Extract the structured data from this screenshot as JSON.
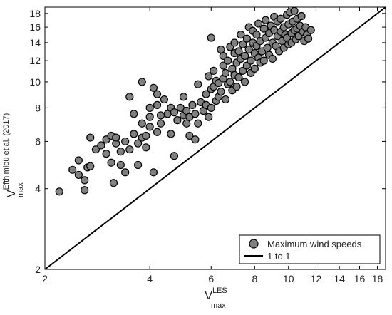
{
  "chart_data": {
    "type": "scatter",
    "x_scale": "log",
    "y_scale": "log",
    "xlim": [
      2,
      19
    ],
    "ylim": [
      2,
      19
    ],
    "x_ticks": [
      2,
      4,
      6,
      8,
      10,
      12,
      14,
      16,
      18
    ],
    "y_ticks": [
      2,
      4,
      6,
      8,
      10,
      12,
      14,
      16,
      18
    ],
    "x_tick_labels": [
      "2",
      "4",
      "6",
      "8",
      "10",
      "12",
      "14",
      "16",
      "18"
    ],
    "y_tick_labels": [
      "2",
      "4",
      "6",
      "8",
      "10",
      "12",
      "14",
      "16",
      "18"
    ],
    "xlabel": {
      "main": "V",
      "sub": "max",
      "sup": "LES"
    },
    "ylabel": {
      "main": "V",
      "sub": "max",
      "sup": "Efthimiou et al. (2017)"
    },
    "grid": false,
    "legend_position": "bottom-right",
    "marker_color": "#808080",
    "marker_edge_color": "#000000",
    "series": [
      {
        "name": "Maximum wind speeds",
        "kind": "scatter",
        "points": [
          [
            2.2,
            3.9
          ],
          [
            2.4,
            4.7
          ],
          [
            2.5,
            4.5
          ],
          [
            2.5,
            5.1
          ],
          [
            2.6,
            4.3
          ],
          [
            2.6,
            3.95
          ],
          [
            2.65,
            4.8
          ],
          [
            2.7,
            4.85
          ],
          [
            2.7,
            6.2
          ],
          [
            2.8,
            5.6
          ],
          [
            2.9,
            5.8
          ],
          [
            3.0,
            6.1
          ],
          [
            3.0,
            5.4
          ],
          [
            3.1,
            6.3
          ],
          [
            3.1,
            5.0
          ],
          [
            3.15,
            4.2
          ],
          [
            3.2,
            5.9
          ],
          [
            3.2,
            6.2
          ],
          [
            3.3,
            5.5
          ],
          [
            3.3,
            4.9
          ],
          [
            3.4,
            6.0
          ],
          [
            3.4,
            4.6
          ],
          [
            3.5,
            8.8
          ],
          [
            3.5,
            5.6
          ],
          [
            3.6,
            6.4
          ],
          [
            3.6,
            7.6
          ],
          [
            3.7,
            5.9
          ],
          [
            3.7,
            4.9
          ],
          [
            3.8,
            6.2
          ],
          [
            3.8,
            10.0
          ],
          [
            3.8,
            7.0
          ],
          [
            3.9,
            6.3
          ],
          [
            3.9,
            5.7
          ],
          [
            4.0,
            8.0
          ],
          [
            4.0,
            6.8
          ],
          [
            4.0,
            7.4
          ],
          [
            4.1,
            9.5
          ],
          [
            4.1,
            4.6
          ],
          [
            4.2,
            9.0
          ],
          [
            4.2,
            8.2
          ],
          [
            4.2,
            6.5
          ],
          [
            4.3,
            7.5
          ],
          [
            4.3,
            7.0
          ],
          [
            4.4,
            8.6
          ],
          [
            4.5,
            7.6
          ],
          [
            4.6,
            8.0
          ],
          [
            4.6,
            6.4
          ],
          [
            4.7,
            7.7
          ],
          [
            4.7,
            5.3
          ],
          [
            4.8,
            7.2
          ],
          [
            4.9,
            8.0
          ],
          [
            5.0,
            7.5
          ],
          [
            5.0,
            8.8
          ],
          [
            5.1,
            7.0
          ],
          [
            5.1,
            7.8
          ],
          [
            5.2,
            6.3
          ],
          [
            5.2,
            7.4
          ],
          [
            5.3,
            8.2
          ],
          [
            5.4,
            7.6
          ],
          [
            5.4,
            6.1
          ],
          [
            5.5,
            9.8
          ],
          [
            5.5,
            7.0
          ],
          [
            5.6,
            8.4
          ],
          [
            5.7,
            7.8
          ],
          [
            5.8,
            9.0
          ],
          [
            5.8,
            8.2
          ],
          [
            5.9,
            10.5
          ],
          [
            5.9,
            7.4
          ],
          [
            6.0,
            8.0
          ],
          [
            6.0,
            9.4
          ],
          [
            6.0,
            14.6
          ],
          [
            6.1,
            9.6
          ],
          [
            6.1,
            11.0
          ],
          [
            6.2,
            8.5
          ],
          [
            6.2,
            10.1
          ],
          [
            6.3,
            8.8
          ],
          [
            6.3,
            9.9
          ],
          [
            6.4,
            13.2
          ],
          [
            6.4,
            9.2
          ],
          [
            6.5,
            10.3
          ],
          [
            6.5,
            11.5
          ],
          [
            6.5,
            12.5
          ],
          [
            6.6,
            8.6
          ],
          [
            6.6,
            10.8
          ],
          [
            6.7,
            9.8
          ],
          [
            6.7,
            12.0
          ],
          [
            6.8,
            13.5
          ],
          [
            6.8,
            10.0
          ],
          [
            6.9,
            11.2
          ],
          [
            6.9,
            9.3
          ],
          [
            7.0,
            12.8
          ],
          [
            7.0,
            10.6
          ],
          [
            7.0,
            14.0
          ],
          [
            7.1,
            11.8
          ],
          [
            7.1,
            9.6
          ],
          [
            7.2,
            13.0
          ],
          [
            7.2,
            10.4
          ],
          [
            7.3,
            12.2
          ],
          [
            7.3,
            15.0
          ],
          [
            7.4,
            11.0
          ],
          [
            7.4,
            13.8
          ],
          [
            7.5,
            12.5
          ],
          [
            7.5,
            10.0
          ],
          [
            7.6,
            14.5
          ],
          [
            7.6,
            11.5
          ],
          [
            7.7,
            13.2
          ],
          [
            7.7,
            16.0
          ],
          [
            7.8,
            12.0
          ],
          [
            7.8,
            10.8
          ],
          [
            7.9,
            14.0
          ],
          [
            7.9,
            15.5
          ],
          [
            8.0,
            12.8
          ],
          [
            8.0,
            11.2
          ],
          [
            8.1,
            13.6
          ],
          [
            8.1,
            15.0
          ],
          [
            8.2,
            12.3
          ],
          [
            8.2,
            16.5
          ],
          [
            8.3,
            14.2
          ],
          [
            8.3,
            11.8
          ],
          [
            8.4,
            13.0
          ],
          [
            8.5,
            15.8
          ],
          [
            8.5,
            12.0
          ],
          [
            8.6,
            14.6
          ],
          [
            8.6,
            17.0
          ],
          [
            8.7,
            13.4
          ],
          [
            8.8,
            15.2
          ],
          [
            8.8,
            12.6
          ],
          [
            8.9,
            16.2
          ],
          [
            9.0,
            14.0
          ],
          [
            9.0,
            12.2
          ],
          [
            9.1,
            15.6
          ],
          [
            9.1,
            17.5
          ],
          [
            9.2,
            13.6
          ],
          [
            9.3,
            16.8
          ],
          [
            9.3,
            14.8
          ],
          [
            9.4,
            13.0
          ],
          [
            9.5,
            15.4
          ],
          [
            9.5,
            17.2
          ],
          [
            9.6,
            14.2
          ],
          [
            9.7,
            16.0
          ],
          [
            9.7,
            13.4
          ],
          [
            9.8,
            15.0
          ],
          [
            9.9,
            17.8
          ],
          [
            9.9,
            14.6
          ],
          [
            10.0,
            16.4
          ],
          [
            10.0,
            13.8
          ],
          [
            10.1,
            18.2
          ],
          [
            10.2,
            15.2
          ],
          [
            10.2,
            14.0
          ],
          [
            10.3,
            16.8
          ],
          [
            10.4,
            15.6
          ],
          [
            10.4,
            18.4
          ],
          [
            10.5,
            14.4
          ],
          [
            10.6,
            17.2
          ],
          [
            10.6,
            15.8
          ],
          [
            10.7,
            14.8
          ],
          [
            10.8,
            16.2
          ],
          [
            10.9,
            17.6
          ],
          [
            11.0,
            15.4
          ],
          [
            11.1,
            14.2
          ],
          [
            11.2,
            16.0
          ],
          [
            11.3,
            15.0
          ],
          [
            11.4,
            14.5
          ],
          [
            11.6,
            15.6
          ]
        ]
      },
      {
        "name": "1 to 1",
        "kind": "line",
        "points": [
          [
            2,
            2
          ],
          [
            19,
            19
          ]
        ]
      }
    ]
  }
}
